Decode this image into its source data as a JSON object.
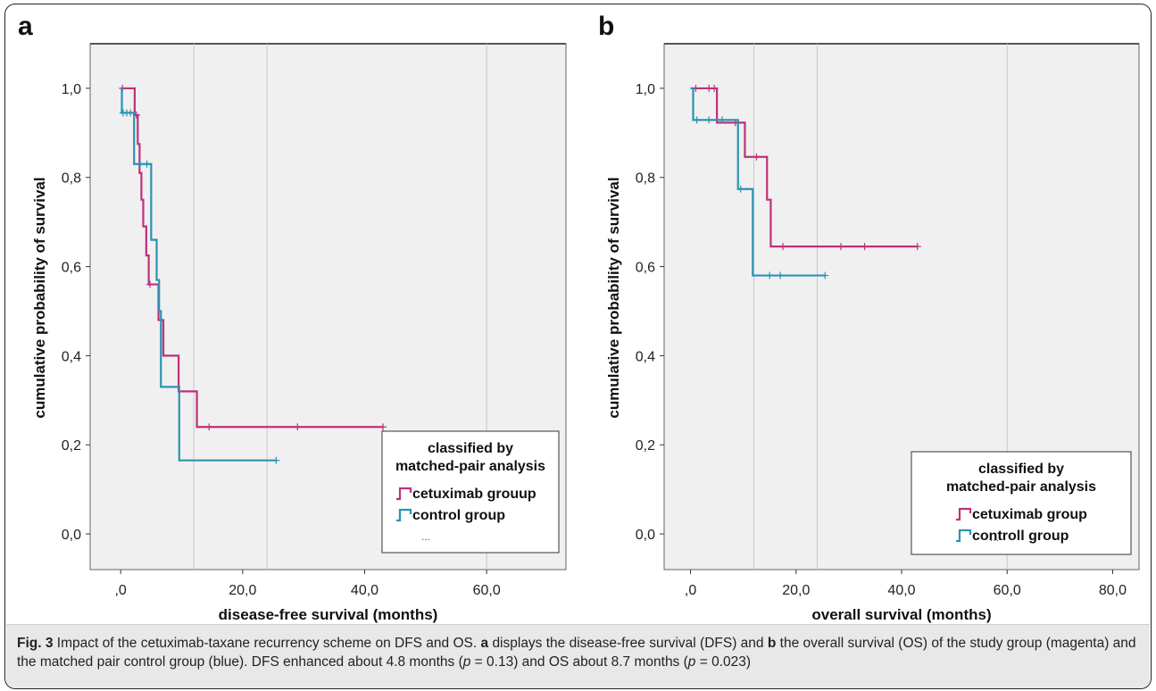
{
  "colors": {
    "cetuximab": "#c0307a",
    "control": "#2b92b4",
    "plot_bg": "#f0f0f0",
    "caption_bg": "#e8e8e8"
  },
  "chart_data": [
    {
      "panel_label": "a",
      "type": "line",
      "step": "post",
      "xlabel": "disease-free survival (months)",
      "ylabel": "cumulative probability of survival",
      "xlim": [
        -5,
        73
      ],
      "ylim": [
        -0.08,
        1.1
      ],
      "x_ticks": [
        0,
        20,
        40,
        60
      ],
      "x_tick_labels": [
        ",0",
        "20,0",
        "40,0",
        "60,0"
      ],
      "y_ticks": [
        0,
        0.2,
        0.4,
        0.6,
        0.8,
        1.0
      ],
      "y_tick_labels": [
        "0,0",
        "0,2",
        "0,4",
        "0,6",
        "0,8",
        "1,0"
      ],
      "ref_lines_x": [
        12,
        24,
        60
      ],
      "legend": {
        "title": [
          "classified by",
          "matched-pair analysis"
        ],
        "entries": [
          "cetuximab grouup",
          "control group"
        ],
        "more": "...",
        "placement": "bottom-right"
      },
      "series": [
        {
          "name": "cetuximab grouup",
          "color_key": "cetuximab",
          "points": [
            [
              0,
              1.0
            ],
            [
              2.3,
              0.94
            ],
            [
              2.8,
              0.875
            ],
            [
              3.1,
              0.81
            ],
            [
              3.4,
              0.75
            ],
            [
              3.7,
              0.69
            ],
            [
              4.2,
              0.625
            ],
            [
              4.6,
              0.56
            ],
            [
              6.2,
              0.48
            ],
            [
              7.0,
              0.4
            ],
            [
              9.5,
              0.32
            ],
            [
              12.5,
              0.24
            ],
            [
              43,
              0.24
            ]
          ],
          "censored": [
            [
              0.3,
              1.0
            ],
            [
              2.6,
              0.94
            ],
            [
              4.8,
              0.56
            ],
            [
              14.5,
              0.24
            ],
            [
              29,
              0.24
            ],
            [
              43,
              0.24
            ]
          ]
        },
        {
          "name": "control group",
          "color_key": "control",
          "points": [
            [
              0,
              1.0
            ],
            [
              0.2,
              0.945
            ],
            [
              2.2,
              0.83
            ],
            [
              5.0,
              0.66
            ],
            [
              5.9,
              0.57
            ],
            [
              6.3,
              0.5
            ],
            [
              6.6,
              0.33
            ],
            [
              9.6,
              0.165
            ],
            [
              25.5,
              0.165
            ]
          ],
          "censored": [
            [
              0.4,
              0.945
            ],
            [
              1.0,
              0.945
            ],
            [
              1.6,
              0.945
            ],
            [
              3.2,
              0.83
            ],
            [
              4.3,
              0.83
            ],
            [
              25.5,
              0.165
            ]
          ]
        }
      ]
    },
    {
      "panel_label": "b",
      "type": "line",
      "step": "post",
      "xlabel": "overall survival (months)",
      "ylabel": "cumulative probability of survival",
      "xlim": [
        -5,
        85
      ],
      "ylim": [
        -0.08,
        1.1
      ],
      "x_ticks": [
        0,
        20,
        40,
        60,
        80
      ],
      "x_tick_labels": [
        ",0",
        "20,0",
        "40,0",
        "60,0",
        "80,0"
      ],
      "y_ticks": [
        0,
        0.2,
        0.4,
        0.6,
        0.8,
        1.0
      ],
      "y_tick_labels": [
        "0,0",
        "0,2",
        "0,4",
        "0,6",
        "0,8",
        "1,0"
      ],
      "ref_lines_x": [
        12,
        24,
        60
      ],
      "legend": {
        "title": [
          "classified by",
          "matched-pair analysis"
        ],
        "entries": [
          "cetuximab group",
          "controll group"
        ],
        "more": "...",
        "placement": "bottom-right"
      },
      "series": [
        {
          "name": "cetuximab group",
          "color_key": "cetuximab",
          "points": [
            [
              0,
              1.0
            ],
            [
              5.0,
              0.923
            ],
            [
              10.3,
              0.846
            ],
            [
              14.5,
              0.75
            ],
            [
              15.2,
              0.645
            ],
            [
              43,
              0.645
            ]
          ],
          "censored": [
            [
              1.0,
              1.0
            ],
            [
              3.5,
              1.0
            ],
            [
              4.5,
              1.0
            ],
            [
              8.5,
              0.923
            ],
            [
              12.5,
              0.846
            ],
            [
              17.5,
              0.645
            ],
            [
              28.5,
              0.645
            ],
            [
              33,
              0.645
            ],
            [
              43,
              0.645
            ]
          ]
        },
        {
          "name": "controll group",
          "color_key": "control",
          "points": [
            [
              0,
              1.0
            ],
            [
              0.5,
              0.929
            ],
            [
              9.0,
              0.774
            ],
            [
              11.8,
              0.58
            ],
            [
              25.5,
              0.58
            ]
          ],
          "censored": [
            [
              1.2,
              0.929
            ],
            [
              3.5,
              0.929
            ],
            [
              6,
              0.929
            ],
            [
              9.5,
              0.774
            ],
            [
              15,
              0.58
            ],
            [
              17,
              0.58
            ],
            [
              25.5,
              0.58
            ]
          ]
        }
      ]
    }
  ],
  "caption": {
    "fig_label": "Fig. 3",
    "title": "Impact of the cetuximab-taxane recurrency scheme on DFS and OS.",
    "a": "a",
    "text1": "displays the disease-free survival (DFS) and",
    "b": "b",
    "text2": "the overall survival (OS) of the study group (magenta) and the matched pair control group (blue). DFS enhanced about 4.8 months (",
    "p1_sym": "p",
    "p1_rest": "= 0.13) and OS about 8.7 months (",
    "p2_sym": "p",
    "p2_rest": "= 0.023)"
  }
}
